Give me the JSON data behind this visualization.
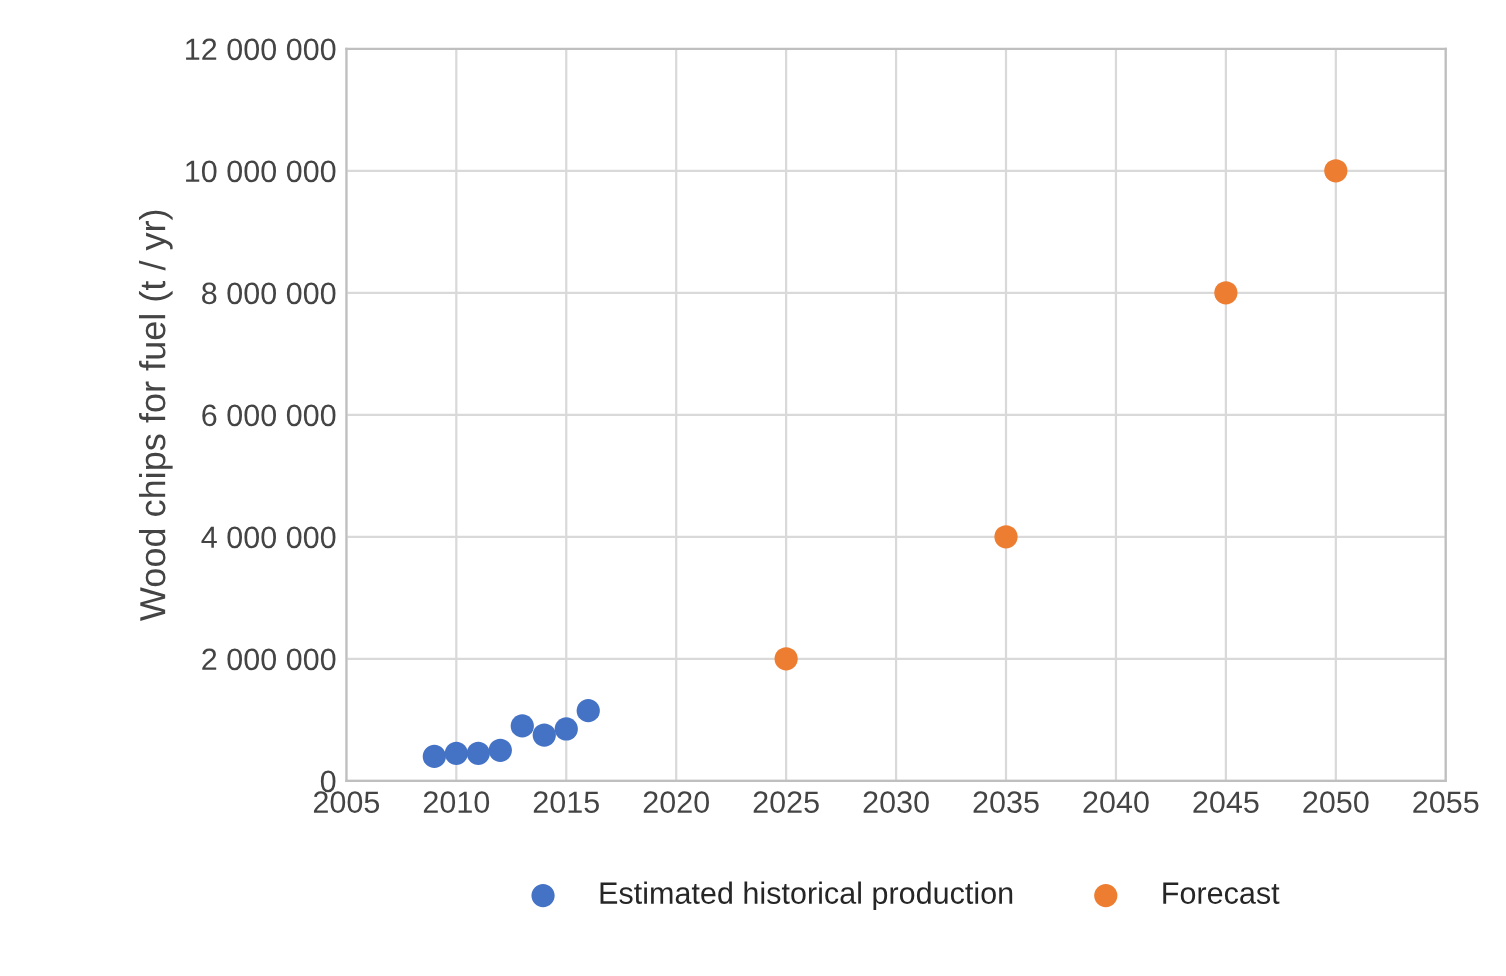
{
  "chart_data": {
    "type": "scatter",
    "ylabel": "Wood chips for fuel (t / yr)",
    "series": [
      {
        "name": "Estimated historical production",
        "color": "#4472c4",
        "x": [
          2009,
          2010,
          2011,
          2012,
          2013,
          2014,
          2015,
          2016
        ],
        "values": [
          400000,
          450000,
          450000,
          500000,
          900000,
          750000,
          850000,
          1150000
        ]
      },
      {
        "name": "Forecast",
        "color": "#ed7d31",
        "x": [
          2025,
          2035,
          2045,
          2050
        ],
        "values": [
          2000000,
          4000000,
          8000000,
          10000000
        ]
      }
    ],
    "xlim": [
      2005,
      2055
    ],
    "xticks": [
      2005,
      2010,
      2015,
      2020,
      2025,
      2030,
      2035,
      2040,
      2045,
      2050,
      2055
    ],
    "ylim": [
      0,
      12000000
    ],
    "yticks": [
      0,
      {
        "value": 2000000,
        "label": "2 000 000"
      },
      {
        "value": 4000000,
        "label": "4 000 000"
      },
      {
        "value": 6000000,
        "label": "6 000 000"
      },
      {
        "value": 8000000,
        "label": "8 000 000"
      },
      {
        "value": 10000000,
        "label": "10 000 000"
      },
      {
        "value": 12000000,
        "label": "12 000 000"
      }
    ],
    "grid": true,
    "legend": "bottom",
    "marker": "circle"
  }
}
